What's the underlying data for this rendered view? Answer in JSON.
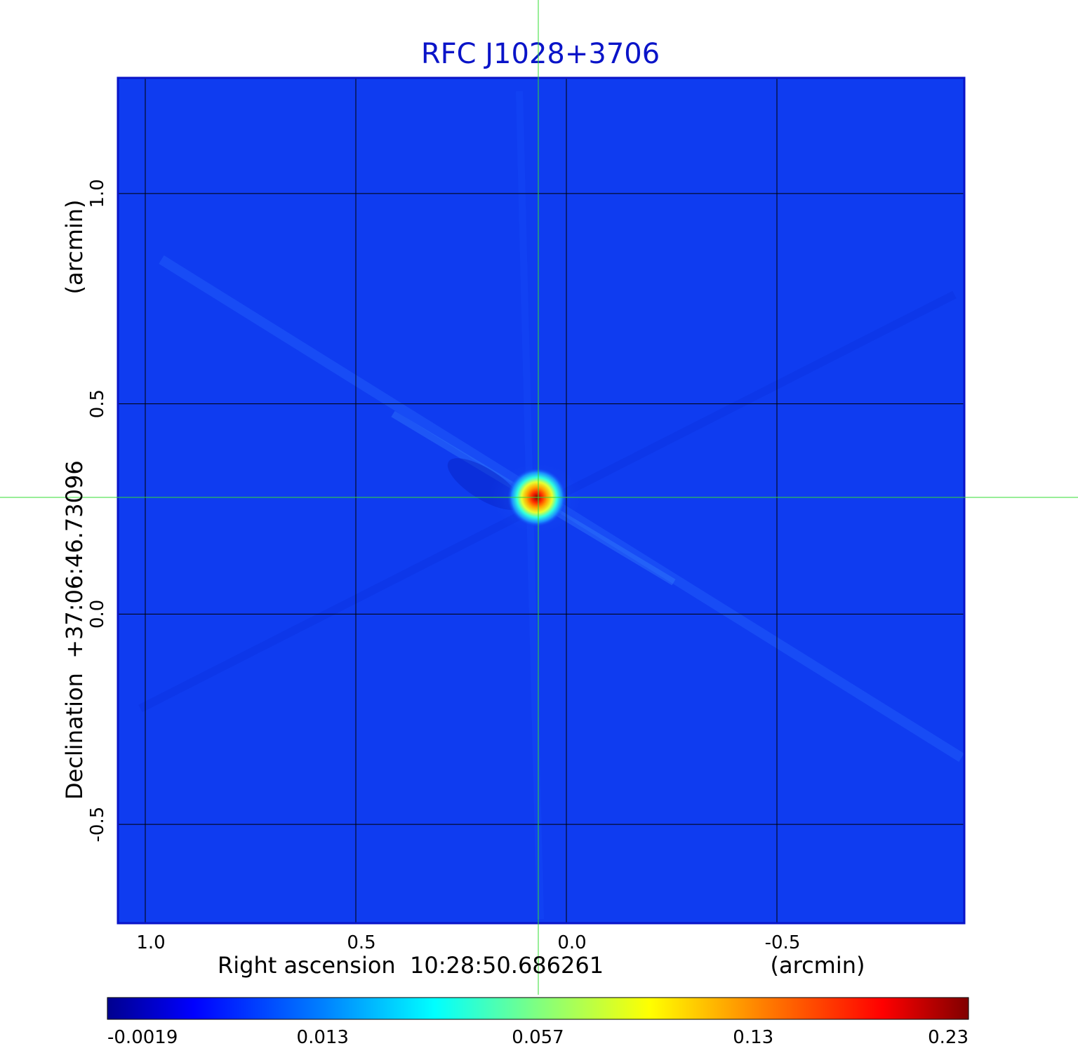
{
  "chart_data": {
    "type": "heatmap",
    "title": "RFC J1028+3706",
    "xlabel": "Right ascension  10:28:50.686261",
    "xunit": "(arcmin)",
    "ylabel": "Declination  +37:06:46.73096",
    "yunit": "(arcmin)",
    "x_ticks": [
      "1.0",
      "0.5",
      "0.0",
      "-0.5"
    ],
    "x_tick_values": [
      1.0,
      0.5,
      0.0,
      -0.5
    ],
    "y_ticks": [
      "1.0",
      "0.5",
      "0.0",
      "-0.5"
    ],
    "y_tick_values": [
      1.0,
      0.5,
      0.0,
      -0.5
    ],
    "xlim": [
      1.065,
      -0.945
    ],
    "ylim": [
      -0.735,
      1.275
    ],
    "grid": true,
    "crosshair": {
      "x": 0.065,
      "y": 0.283,
      "color": "#33dd33"
    },
    "source_peak": {
      "x": 0.065,
      "y": 0.283
    },
    "colorbar": {
      "ticks": [
        "-0.0019",
        "0.013",
        "0.057",
        "0.13",
        "0.23"
      ],
      "min": -0.0019,
      "max": 0.23,
      "colormap": "jet"
    },
    "colors": {
      "title": "#0a14c8",
      "frame": "#0a14c8",
      "background": "#0f3cf0",
      "grid": "#000000"
    }
  }
}
